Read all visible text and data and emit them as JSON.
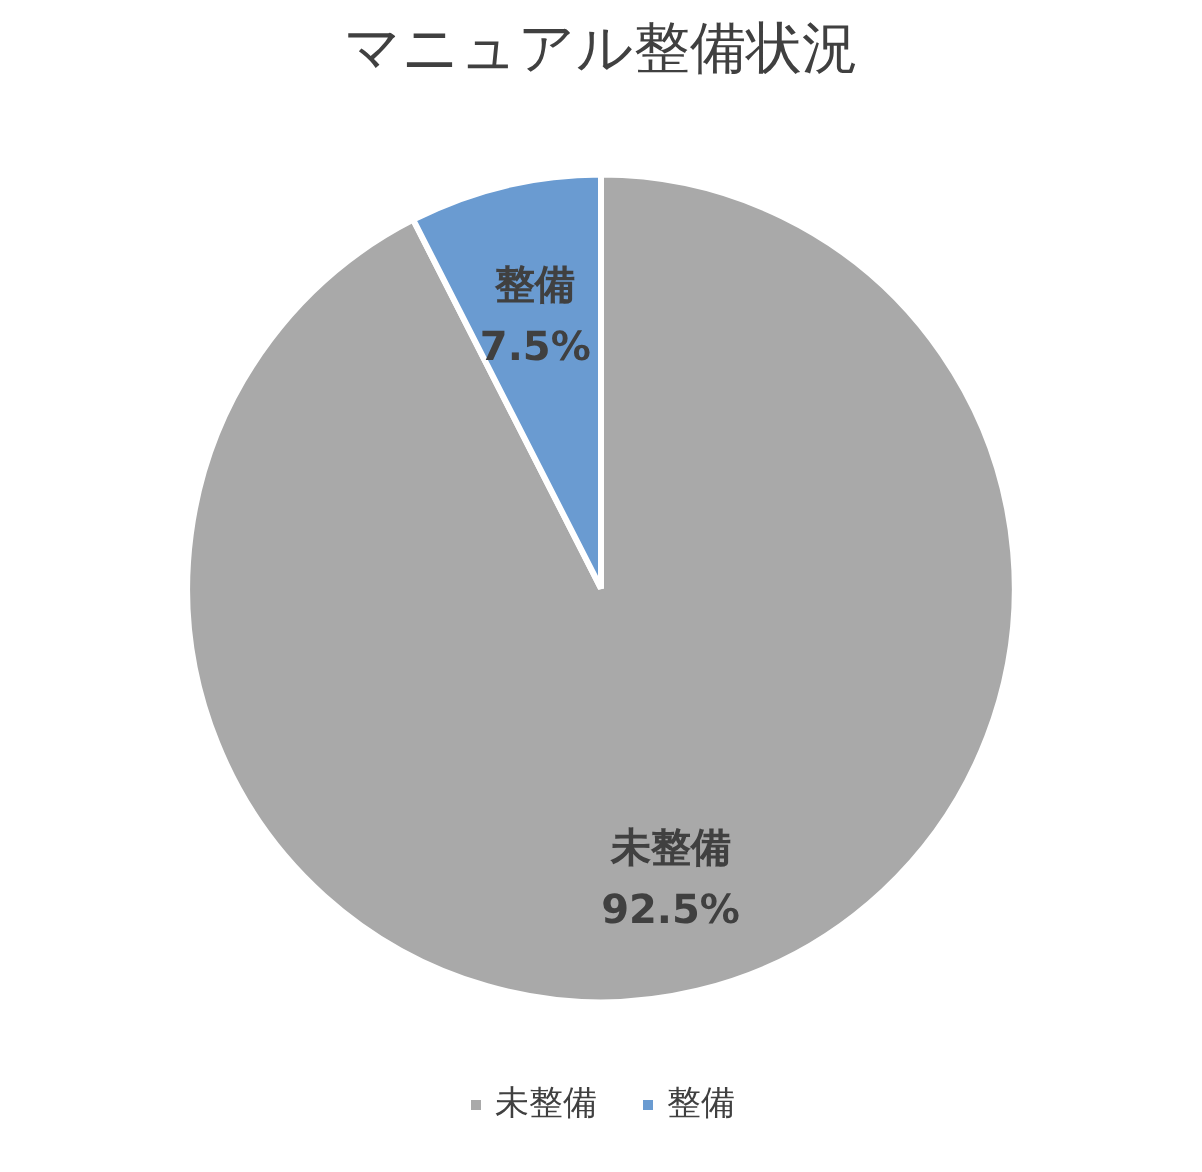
{
  "chart_data": {
    "type": "pie",
    "title": "マニュアル整備状況",
    "categories": [
      "未整備",
      "整備"
    ],
    "values": [
      92.5,
      7.5
    ],
    "colors": [
      "#a9a9a9",
      "#6a9bd1"
    ],
    "value_labels": [
      "92.5%",
      "7.5%"
    ],
    "legend": "bottom"
  }
}
